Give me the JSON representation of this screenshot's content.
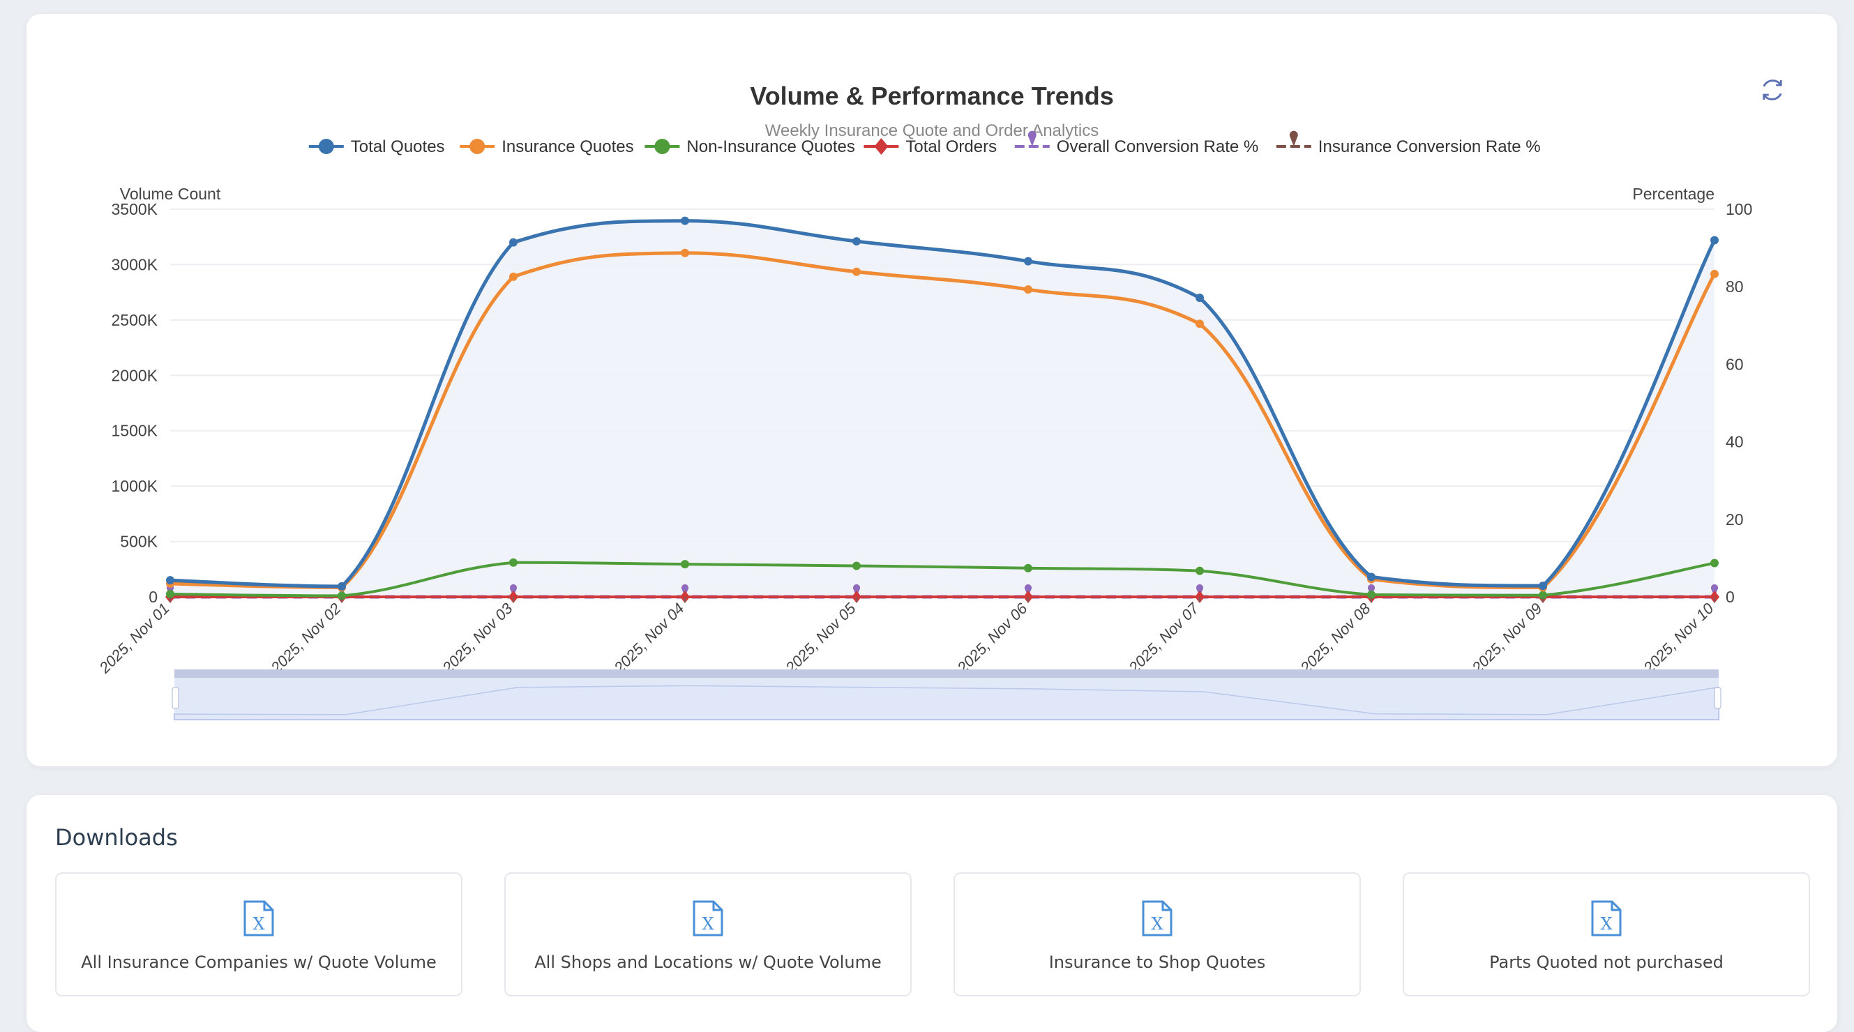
{
  "chart_data": {
    "type": "line",
    "title": "Volume & Performance Trends",
    "subtitle": "Weekly Insurance Quote and Order Analytics",
    "x": [
      "2025, Nov 01",
      "2025, Nov 02",
      "2025, Nov 03",
      "2025, Nov 04",
      "2025, Nov 05",
      "2025, Nov 06",
      "2025, Nov 07",
      "2025, Nov 08",
      "2025, Nov 09",
      "2025, Nov 10"
    ],
    "ylabel": "Volume Count",
    "y2label": "Percentage",
    "ylim": [
      0,
      3500000
    ],
    "y2lim": [
      0,
      100
    ],
    "yticks": [
      "0",
      "500K",
      "1000K",
      "1500K",
      "2000K",
      "2500K",
      "3000K",
      "3500K"
    ],
    "y2ticks": [
      "0",
      "20",
      "40",
      "60",
      "80",
      "100"
    ],
    "grid": true,
    "legend_position": "top",
    "series": [
      {
        "name": "Total Quotes",
        "axis": "left",
        "color": "#3a74b0",
        "marker": "circle",
        "values": [
          150000,
          95000,
          3200000,
          3395000,
          3210000,
          3030000,
          2700000,
          180000,
          100000,
          3220000
        ]
      },
      {
        "name": "Insurance Quotes",
        "axis": "left",
        "color": "#ef8a35",
        "marker": "circle",
        "values": [
          120000,
          85000,
          2890000,
          3105000,
          2935000,
          2775000,
          2465000,
          160000,
          85000,
          2915000
        ]
      },
      {
        "name": "Non-Insurance Quotes",
        "axis": "left",
        "color": "#4f9d3a",
        "marker": "circle",
        "values": [
          25000,
          10000,
          310000,
          295000,
          280000,
          260000,
          235000,
          20000,
          15000,
          305000
        ]
      },
      {
        "name": "Total Orders",
        "axis": "left",
        "color": "#d0393a",
        "marker": "diamond",
        "values": [
          0,
          0,
          0,
          0,
          0,
          0,
          0,
          0,
          0,
          0
        ]
      },
      {
        "name": "Overall Conversion Rate %",
        "axis": "right",
        "color": "#8e6bbf",
        "marker": "pin",
        "dashed": true,
        "values": [
          0,
          0,
          0,
          0,
          0,
          0,
          0,
          0,
          0,
          0
        ]
      },
      {
        "name": "Insurance Conversion Rate %",
        "axis": "right",
        "color": "#7d5046",
        "marker": "pin",
        "dashed": true,
        "values": [
          0,
          0,
          0,
          0,
          0,
          0,
          0,
          0,
          0,
          0
        ]
      }
    ],
    "data_zoom": {
      "start_percent": 0,
      "end_percent": 100
    }
  },
  "toolbar": {
    "refresh_icon": "refresh-icon"
  },
  "downloads": {
    "title": "Downloads",
    "icon": "excel-file-icon",
    "icon_color": "#4a90d9",
    "items": [
      {
        "label": "All Insurance Companies w/ Quote Volume"
      },
      {
        "label": "All Shops and Locations w/ Quote Volume"
      },
      {
        "label": "Insurance to Shop Quotes"
      },
      {
        "label": "Parts Quoted not purchased"
      }
    ]
  }
}
